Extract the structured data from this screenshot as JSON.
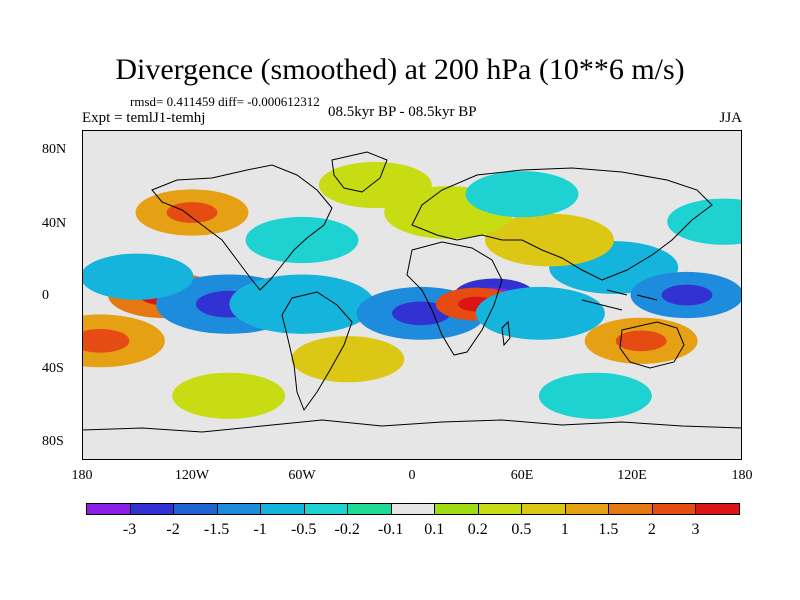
{
  "title": "Divergence (smoothed) at 200 hPa (10**6 m/s)",
  "stats": "rmsd= 0.411459 diff= -0.000612312",
  "experiment": "Expt = temlJ1-temhj",
  "period": "08.5kyr BP - 08.5kyr BP",
  "season": "JJA",
  "lat_labels": [
    "80N",
    "40N",
    "0",
    "40S",
    "80S"
  ],
  "lon_labels": [
    "180",
    "120W",
    "60W",
    "0",
    "60E",
    "120E",
    "180"
  ],
  "colorbar": {
    "colors": [
      "#8d1ee6",
      "#3232d2",
      "#1e64d2",
      "#1e8cdc",
      "#14b4dc",
      "#1ed2d2",
      "#1edc96",
      "#e6e6e6",
      "#a0dc14",
      "#c8dc14",
      "#dcc814",
      "#e6a014",
      "#e67814",
      "#e64b14",
      "#dc1414"
    ],
    "labels": [
      "-3",
      "-2",
      "-1.5",
      "-1",
      "-0.5",
      "-0.2",
      "-0.1",
      "0.1",
      "0.2",
      "0.5",
      "1",
      "1.5",
      "2",
      "3"
    ]
  },
  "chart_data": {
    "type": "heatmap",
    "title": "Divergence (smoothed) at 200 hPa (10**6 m/s)",
    "x_range": [
      -180,
      180
    ],
    "y_range": [
      -90,
      90
    ],
    "blobs": [
      {
        "lon": -135,
        "lat": 0,
        "level": 12,
        "r": 14
      },
      {
        "lon": -170,
        "lat": -25,
        "level": 11,
        "r": 16
      },
      {
        "lon": -100,
        "lat": -5,
        "level": 3,
        "r": 18
      },
      {
        "lon": -150,
        "lat": 10,
        "level": 4,
        "r": 14
      },
      {
        "lon": -60,
        "lat": -5,
        "level": 4,
        "r": 18
      },
      {
        "lon": -35,
        "lat": -35,
        "level": 10,
        "r": 14
      },
      {
        "lon": 5,
        "lat": -10,
        "level": 3,
        "r": 16
      },
      {
        "lon": 45,
        "lat": 0,
        "level": 1,
        "r": 10
      },
      {
        "lon": 35,
        "lat": -5,
        "level": 13,
        "r": 10
      },
      {
        "lon": 70,
        "lat": -10,
        "level": 4,
        "r": 16
      },
      {
        "lon": 110,
        "lat": 15,
        "level": 4,
        "r": 16
      },
      {
        "lon": 150,
        "lat": 0,
        "level": 3,
        "r": 14
      },
      {
        "lon": 125,
        "lat": -25,
        "level": 11,
        "r": 14
      },
      {
        "lon": 75,
        "lat": 30,
        "level": 10,
        "r": 16
      },
      {
        "lon": -120,
        "lat": 45,
        "level": 11,
        "r": 14
      },
      {
        "lon": 20,
        "lat": 45,
        "level": 9,
        "r": 16
      },
      {
        "lon": 170,
        "lat": 40,
        "level": 5,
        "r": 14
      },
      {
        "lon": -20,
        "lat": 60,
        "level": 9,
        "r": 14
      },
      {
        "lon": 100,
        "lat": -55,
        "level": 5,
        "r": 14
      },
      {
        "lon": -100,
        "lat": -55,
        "level": 9,
        "r": 14
      },
      {
        "lon": -60,
        "lat": 30,
        "level": 5,
        "r": 14
      },
      {
        "lon": 60,
        "lat": 55,
        "level": 5,
        "r": 14
      }
    ]
  }
}
